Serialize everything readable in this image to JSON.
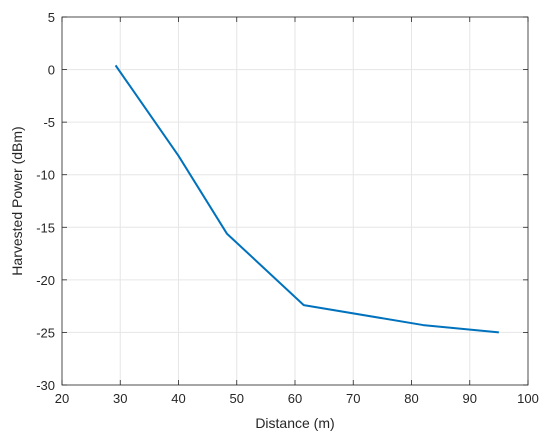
{
  "chart_data": {
    "type": "line",
    "xlabel": "Distance (m)",
    "ylabel": "Harvested Power (dBm)",
    "xlim": [
      20,
      100
    ],
    "ylim": [
      -30,
      5
    ],
    "xticks": [
      20,
      30,
      40,
      50,
      60,
      70,
      80,
      90,
      100
    ],
    "yticks": [
      -30,
      -25,
      -20,
      -15,
      -10,
      -5,
      0,
      5
    ],
    "grid": true,
    "series": [
      {
        "color": "#0072BD",
        "x": [
          29.2,
          40.0,
          48.3,
          61.5,
          82.0,
          95.0
        ],
        "y": [
          0.4,
          -8.2,
          -15.6,
          -22.4,
          -24.3,
          -25.0
        ]
      }
    ]
  }
}
